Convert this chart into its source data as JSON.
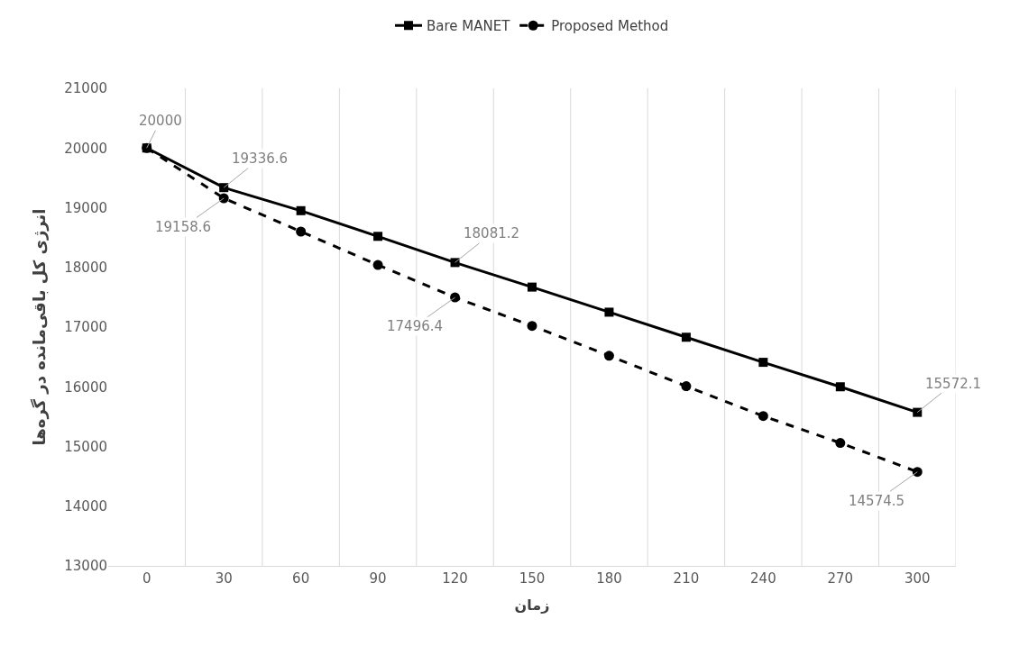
{
  "chart_data": {
    "type": "line",
    "xlabel": "زمان",
    "ylabel": "انرژی کل باقی‌مانده در گره‌ها",
    "categories": [
      "0",
      "30",
      "60",
      "90",
      "120",
      "150",
      "180",
      "210",
      "240",
      "270",
      "300"
    ],
    "series": [
      {
        "name": "Bare MANET",
        "color": "#000000",
        "marker": "square",
        "line_style": "solid",
        "values": [
          20000,
          19336.6,
          18950,
          18520,
          18081.2,
          17670,
          17250,
          16830,
          16410,
          16000,
          15572.1
        ],
        "value_labels": [
          "20000",
          "19336.6",
          null,
          null,
          "18081.2",
          null,
          null,
          null,
          null,
          null,
          "15572.1"
        ]
      },
      {
        "name": "Proposed Method",
        "color": "#000000",
        "marker": "circle",
        "line_style": "dashed",
        "values": [
          20000,
          19158.6,
          18600,
          18040,
          17496.4,
          17020,
          16520,
          16010,
          15510,
          15060,
          14574.5
        ],
        "value_labels": [
          null,
          "19158.6",
          null,
          null,
          "17496.4",
          null,
          null,
          null,
          null,
          null,
          "14574.5"
        ]
      }
    ],
    "ylim": [
      13000,
      21000
    ],
    "yticks": [
      13000,
      14000,
      15000,
      16000,
      17000,
      18000,
      19000,
      20000,
      21000
    ],
    "grid": "x",
    "legend": "top"
  }
}
